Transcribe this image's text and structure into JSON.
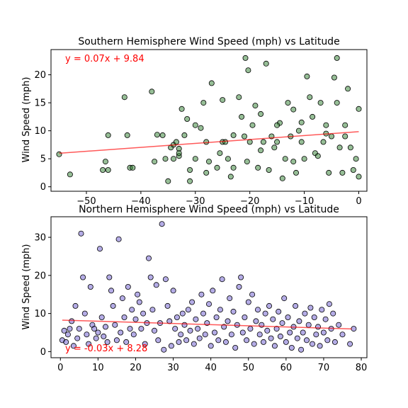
{
  "chart_data": [
    {
      "type": "scatter",
      "title": "Southern Hemisphere Wind Speed (mph) vs Latitude",
      "xlabel": "",
      "ylabel": "Wind Speed (mph)",
      "xlim": [
        -56.5,
        1.5
      ],
      "ylim": [
        -0.8,
        24.5
      ],
      "xticks": [
        -50,
        -40,
        -30,
        -20,
        -10,
        0
      ],
      "yticks": [
        0,
        5,
        10,
        15,
        20
      ],
      "grid": false,
      "point_color": "#2e7d2e",
      "regression": {
        "equation": "y = 0.07x + 9.84",
        "slope": 0.07,
        "intercept": 9.84,
        "x_range": [
          -55,
          0
        ],
        "color": "#ff0000"
      },
      "points": [
        [
          -55,
          5.8
        ],
        [
          -53,
          2.2
        ],
        [
          -47,
          3
        ],
        [
          -46.5,
          4.5
        ],
        [
          -46,
          3
        ],
        [
          -46,
          9.2
        ],
        [
          -43,
          16
        ],
        [
          -42.5,
          9.2
        ],
        [
          -42,
          3.4
        ],
        [
          -41.5,
          3.4
        ],
        [
          -38,
          17
        ],
        [
          -37.5,
          4.5
        ],
        [
          -37,
          9.3
        ],
        [
          -36,
          9.2
        ],
        [
          -35.5,
          5
        ],
        [
          -35,
          1
        ],
        [
          -34.5,
          7
        ],
        [
          -34,
          5
        ],
        [
          -34,
          7.5
        ],
        [
          -33.5,
          8
        ],
        [
          -33,
          6.8
        ],
        [
          -33,
          5.5
        ],
        [
          -33,
          6
        ],
        [
          -32.5,
          13.9
        ],
        [
          -32,
          9.2
        ],
        [
          -31.5,
          12.1
        ],
        [
          -31,
          1
        ],
        [
          -30,
          5
        ],
        [
          -29,
          10.5
        ],
        [
          -28.5,
          15
        ],
        [
          -28,
          2.5
        ],
        [
          -28,
          8
        ],
        [
          -27.5,
          4.5
        ],
        [
          -27,
          18.5
        ],
        [
          -26,
          3.4
        ],
        [
          -25.5,
          6
        ],
        [
          -25,
          8
        ],
        [
          -24.5,
          8
        ],
        [
          -24,
          5
        ],
        [
          -23.5,
          1.8
        ],
        [
          -23,
          9.2
        ],
        [
          -23,
          3.4
        ],
        [
          -22,
          16
        ],
        [
          -21.5,
          12.5
        ],
        [
          -21,
          9
        ],
        [
          -20.5,
          4.5
        ],
        [
          -20,
          8
        ],
        [
          -19.5,
          11
        ],
        [
          -19,
          14.5
        ],
        [
          -18.5,
          3.4
        ],
        [
          -18,
          13
        ],
        [
          -17.5,
          8
        ],
        [
          -17,
          22
        ],
        [
          -16.5,
          3
        ],
        [
          -16,
          9
        ],
        [
          -15.5,
          7
        ],
        [
          -15,
          8
        ],
        [
          -14.5,
          11.4
        ],
        [
          -14,
          1.5
        ],
        [
          -13.5,
          5
        ],
        [
          -13,
          15
        ],
        [
          -12.5,
          9
        ],
        [
          -12,
          4.5
        ],
        [
          -11.5,
          2.5
        ],
        [
          -11,
          10
        ],
        [
          -10.5,
          8
        ],
        [
          -10,
          5
        ],
        [
          -9.5,
          19.7
        ],
        [
          -9,
          16
        ],
        [
          -8.5,
          12.5
        ],
        [
          -8,
          6
        ],
        [
          -7.5,
          5.5
        ],
        [
          -7,
          15
        ],
        [
          -6.5,
          8
        ],
        [
          -6,
          11
        ],
        [
          -5.5,
          2.5
        ],
        [
          -5,
          9
        ],
        [
          -4.5,
          19.5
        ],
        [
          -4,
          15
        ],
        [
          -3.5,
          7
        ],
        [
          -3,
          2.5
        ],
        [
          -2.5,
          11
        ],
        [
          -2,
          17.5
        ],
        [
          -1.5,
          7
        ],
        [
          -1,
          3
        ],
        [
          -0.5,
          5
        ],
        [
          0,
          13.9
        ],
        [
          0,
          1.8
        ],
        [
          -20.3,
          20.8
        ],
        [
          -20.8,
          23
        ],
        [
          -4,
          23
        ],
        [
          -10.5,
          11.5
        ],
        [
          -12,
          13.8
        ],
        [
          -6,
          9.5
        ],
        [
          -2.5,
          9
        ],
        [
          -15,
          11
        ],
        [
          -18,
          6.5
        ],
        [
          -25,
          15.5
        ],
        [
          -30,
          11
        ],
        [
          -31,
          3
        ]
      ]
    },
    {
      "type": "scatter",
      "title": "Northern Hemisphere Wind Speed (mph) vs Latitude",
      "xlabel": "",
      "ylabel": "Wind Speed (mph)",
      "xlim": [
        -2.5,
        81.5
      ],
      "ylim": [
        -1.6,
        35.4
      ],
      "xticks": [
        0,
        10,
        20,
        30,
        40,
        50,
        60,
        70,
        80
      ],
      "yticks": [
        0,
        10,
        20,
        30
      ],
      "grid": false,
      "point_color": "#6a5acd",
      "regression": {
        "equation": "y = -0.03x + 8.28",
        "slope": -0.03,
        "intercept": 8.28,
        "x_range": [
          0.5,
          77.5
        ],
        "color": "#ff0000"
      },
      "points": [
        [
          0.5,
          3
        ],
        [
          1,
          5.5
        ],
        [
          1.5,
          2.5
        ],
        [
          2,
          4.5
        ],
        [
          2.5,
          6
        ],
        [
          3,
          8
        ],
        [
          3.5,
          1.5
        ],
        [
          4,
          12
        ],
        [
          4.5,
          3.5
        ],
        [
          5,
          6
        ],
        [
          5.5,
          31
        ],
        [
          6,
          19.5
        ],
        [
          6.5,
          10
        ],
        [
          7,
          4.5
        ],
        [
          7.5,
          2
        ],
        [
          8,
          17
        ],
        [
          8.5,
          7
        ],
        [
          9,
          6
        ],
        [
          9.5,
          3.5
        ],
        [
          10,
          5
        ],
        [
          10.5,
          27
        ],
        [
          11,
          9
        ],
        [
          11.5,
          4
        ],
        [
          12,
          6.5
        ],
        [
          12.5,
          2.5
        ],
        [
          13,
          19.5
        ],
        [
          13.5,
          16
        ],
        [
          14,
          12
        ],
        [
          14.5,
          7
        ],
        [
          15,
          3
        ],
        [
          15.5,
          29.5
        ],
        [
          16,
          5
        ],
        [
          16.5,
          14
        ],
        [
          17,
          9
        ],
        [
          17.5,
          2.5
        ],
        [
          18,
          17
        ],
        [
          18.5,
          6
        ],
        [
          19,
          11
        ],
        [
          19.5,
          4.5
        ],
        [
          20,
          8.5
        ],
        [
          20.5,
          15
        ],
        [
          21,
          13
        ],
        [
          21.5,
          6
        ],
        [
          22,
          10
        ],
        [
          22.5,
          2
        ],
        [
          23,
          7.5
        ],
        [
          23.5,
          24.5
        ],
        [
          24,
          19.5
        ],
        [
          24.5,
          11
        ],
        [
          25,
          5.5
        ],
        [
          25.5,
          17.5
        ],
        [
          26,
          3
        ],
        [
          26.5,
          7.5
        ],
        [
          27,
          33.5
        ],
        [
          27.5,
          0.5
        ],
        [
          28,
          19
        ],
        [
          28.5,
          12
        ],
        [
          29,
          8
        ],
        [
          29.5,
          1.5
        ],
        [
          30,
          16
        ],
        [
          30.5,
          6
        ],
        [
          31,
          9
        ],
        [
          31.5,
          2.5
        ],
        [
          32,
          4.5
        ],
        [
          32.5,
          10
        ],
        [
          33,
          7
        ],
        [
          33.5,
          3
        ],
        [
          34,
          11
        ],
        [
          34.5,
          5.5
        ],
        [
          35,
          13
        ],
        [
          35.5,
          2
        ],
        [
          36,
          8.5
        ],
        [
          36.5,
          6
        ],
        [
          37,
          3.5
        ],
        [
          37.5,
          15
        ],
        [
          38,
          10
        ],
        [
          38.5,
          4.5
        ],
        [
          39,
          7.5
        ],
        [
          39.5,
          12.5
        ],
        [
          40,
          1.5
        ],
        [
          40.5,
          16
        ],
        [
          41,
          5
        ],
        [
          41.5,
          9
        ],
        [
          42,
          3
        ],
        [
          42.5,
          11
        ],
        [
          43,
          19
        ],
        [
          43.5,
          6.5
        ],
        [
          44,
          2.5
        ],
        [
          44.5,
          8
        ],
        [
          45,
          14
        ],
        [
          45.5,
          4.5
        ],
        [
          46,
          10.5
        ],
        [
          46.5,
          1
        ],
        [
          47,
          7
        ],
        [
          47.5,
          17
        ],
        [
          48,
          19.5
        ],
        [
          48.5,
          5
        ],
        [
          49,
          9
        ],
        [
          49.5,
          3
        ],
        [
          50,
          13
        ],
        [
          50.5,
          6
        ],
        [
          51,
          15
        ],
        [
          51.5,
          2
        ],
        [
          52,
          8
        ],
        [
          52.5,
          11
        ],
        [
          53,
          4.5
        ],
        [
          53.5,
          7
        ],
        [
          54,
          2.5
        ],
        [
          54.5,
          10
        ],
        [
          55,
          5.5
        ],
        [
          55.5,
          12
        ],
        [
          56,
          3.5
        ],
        [
          56.5,
          8.5
        ],
        [
          57,
          1.5
        ],
        [
          57.5,
          6
        ],
        [
          58,
          10.5
        ],
        [
          58.5,
          4
        ],
        [
          59,
          7.5
        ],
        [
          59.5,
          14
        ],
        [
          60,
          2.5
        ],
        [
          60.5,
          9
        ],
        [
          61,
          5
        ],
        [
          61.5,
          1
        ],
        [
          62,
          6.5
        ],
        [
          62.5,
          12
        ],
        [
          63,
          3.5
        ],
        [
          63.5,
          8
        ],
        [
          64,
          0.5
        ],
        [
          64.5,
          5
        ],
        [
          65,
          10
        ],
        [
          65.5,
          3
        ],
        [
          66,
          7
        ],
        [
          66.5,
          11.5
        ],
        [
          67,
          2
        ],
        [
          67.5,
          9
        ],
        [
          68,
          4.5
        ],
        [
          68.5,
          6.5
        ],
        [
          69,
          1.5
        ],
        [
          69.5,
          11
        ],
        [
          70,
          5
        ],
        [
          70.5,
          8.5
        ],
        [
          71,
          3
        ],
        [
          71.5,
          12.5
        ],
        [
          72,
          6
        ],
        [
          72.5,
          10
        ],
        [
          73,
          2.5
        ],
        [
          74,
          7
        ],
        [
          75,
          4.5
        ],
        [
          77,
          2
        ],
        [
          78,
          6
        ]
      ]
    }
  ]
}
